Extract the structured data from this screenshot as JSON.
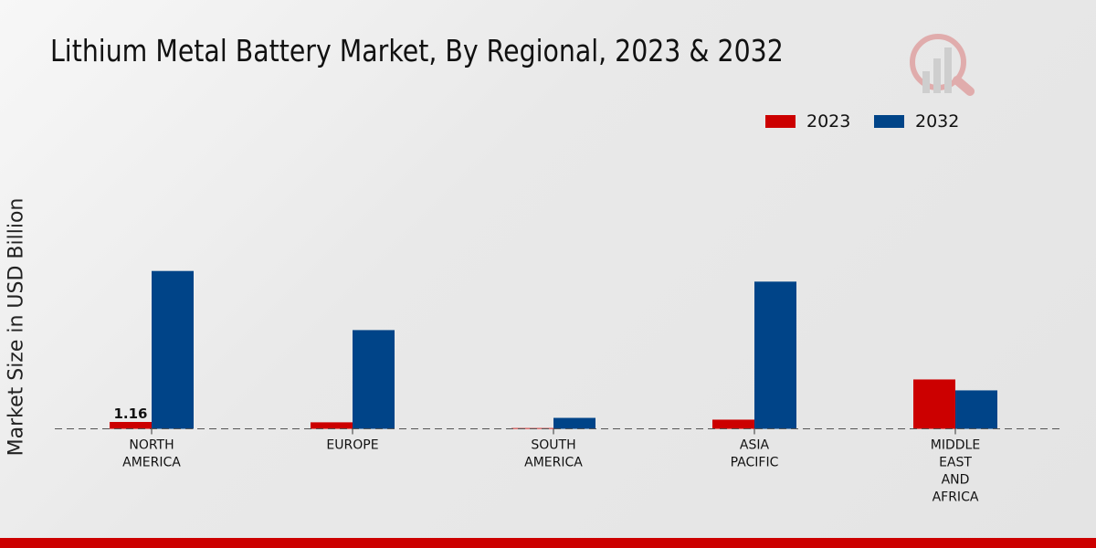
{
  "chart_data": {
    "type": "bar",
    "title": "Lithium Metal Battery Market, By Regional, 2023 & 2032",
    "xlabel": "",
    "ylabel": "Market Size in USD Billion",
    "ylim": [
      0,
      54
    ],
    "grid": false,
    "legend_position": "top-right",
    "categories": [
      [
        "NORTH",
        "AMERICA"
      ],
      [
        "EUROPE"
      ],
      [
        "SOUTH",
        "AMERICA"
      ],
      [
        "ASIA",
        "PACIFIC"
      ],
      [
        "MIDDLE",
        "EAST",
        "AND",
        "AFRICA"
      ]
    ],
    "series": [
      {
        "name": "2023",
        "color": "#cc0000",
        "values": [
          1.16,
          1.1,
          0.1,
          1.55,
          8.35
        ]
      },
      {
        "name": "2032",
        "color": "#004488",
        "values": [
          26.7,
          16.7,
          1.85,
          24.9,
          6.5
        ]
      }
    ],
    "data_labels": [
      {
        "series": 0,
        "index": 0,
        "text": "1.16"
      }
    ]
  }
}
